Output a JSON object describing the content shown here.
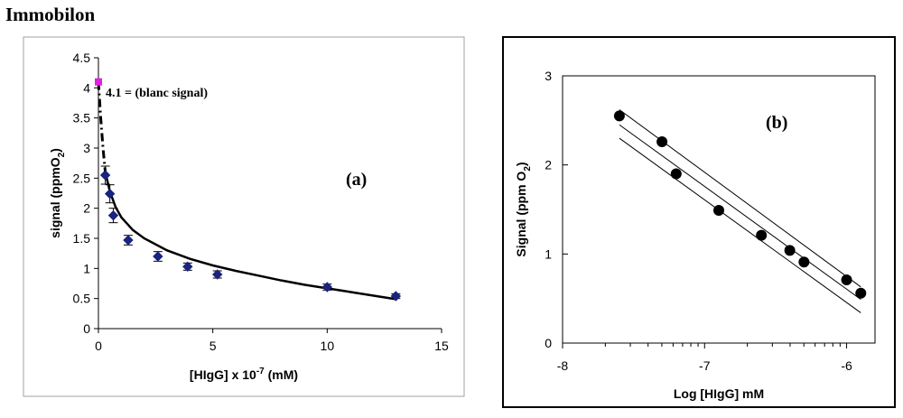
{
  "page": {
    "title": "Immobilon"
  },
  "chart_data": [
    {
      "type": "scatter",
      "panel_label": "(a)",
      "xlabel": "[HIgG] x 10",
      "xlabel_exp": "-7",
      "xlabel_unit": " (mM)",
      "ylabel": "signal (ppmO",
      "ylabel_sub": "2",
      "ylabel_end": ")",
      "xlim": [
        0,
        15
      ],
      "ylim": [
        0,
        4.5
      ],
      "xticks": [
        0,
        5,
        10,
        15
      ],
      "yticks": [
        0,
        0.5,
        1,
        1.5,
        2,
        2.5,
        3,
        3.5,
        4,
        4.5
      ],
      "xtick_labels": [
        "0",
        "5",
        "10",
        "15"
      ],
      "ytick_labels": [
        "0",
        "0.5",
        "1",
        "1.5",
        "2",
        "2.5",
        "3",
        "3.5",
        "4",
        "4.5"
      ],
      "blank_point": {
        "x": 0,
        "y": 4.1,
        "color": "#e020e0"
      },
      "annotation": "4.1 = (blanc signal)",
      "series": [
        {
          "name": "data",
          "color": "#1a237e",
          "x": [
            0.3,
            0.5,
            0.65,
            1.3,
            2.6,
            3.9,
            5.2,
            10,
            13
          ],
          "y": [
            2.55,
            2.24,
            1.88,
            1.47,
            1.2,
            1.03,
            0.9,
            0.69,
            0.54
          ],
          "err": [
            0.15,
            0.15,
            0.12,
            0.08,
            0.08,
            0.06,
            0.06,
            0.05,
            0.04
          ]
        }
      ],
      "fit_curve": {
        "x": [
          0.3,
          0.5,
          0.75,
          1,
          1.5,
          2,
          3,
          4,
          5,
          6,
          7,
          8,
          9,
          10,
          11,
          12,
          13
        ],
        "y": [
          2.6,
          2.28,
          2.02,
          1.85,
          1.64,
          1.5,
          1.3,
          1.16,
          1.05,
          0.96,
          0.88,
          0.8,
          0.73,
          0.67,
          0.61,
          0.55,
          0.49
        ]
      },
      "dashed_segment": {
        "x": [
          0,
          0.1,
          0.2,
          0.3
        ],
        "y": [
          4.1,
          3.5,
          3.0,
          2.6
        ]
      }
    },
    {
      "type": "scatter",
      "panel_label": "(b)",
      "xlabel": "Log [HIgG] mM",
      "ylabel": "Signal (ppm O",
      "ylabel_sub": "2",
      "ylabel_end": ")",
      "xlim": [
        -8,
        -5.8
      ],
      "ylim": [
        0,
        3
      ],
      "xticks": [
        -8,
        -7,
        -6
      ],
      "yticks": [
        0,
        1,
        2,
        3
      ],
      "xtick_labels": [
        "-8",
        "-7",
        "-6"
      ],
      "ytick_labels": [
        "0",
        "1",
        "2",
        "3"
      ],
      "series": [
        {
          "name": "data",
          "color": "#000000",
          "x": [
            -7.6,
            -7.3,
            -7.2,
            -6.9,
            -6.6,
            -6.4,
            -6.3,
            -6.0,
            -5.9
          ],
          "y": [
            2.55,
            2.26,
            1.9,
            1.49,
            1.21,
            1.04,
            0.91,
            0.71,
            0.56
          ]
        }
      ],
      "lines": [
        {
          "name": "upper",
          "x": [
            -7.6,
            -5.9
          ],
          "y": [
            2.62,
            0.63
          ]
        },
        {
          "name": "middle",
          "x": [
            -7.6,
            -5.9
          ],
          "y": [
            2.45,
            0.49
          ]
        },
        {
          "name": "lower",
          "x": [
            -7.6,
            -5.9
          ],
          "y": [
            2.3,
            0.34
          ]
        }
      ]
    }
  ]
}
